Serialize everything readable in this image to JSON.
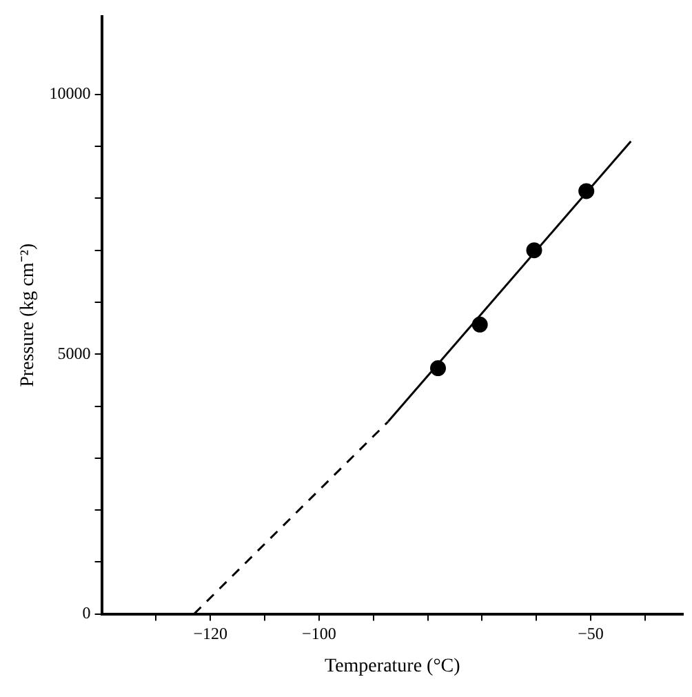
{
  "chart_data": {
    "type": "scatter",
    "xlabel": "Temperature (°C)",
    "ylabel": "Pressure (kg cm⁻²)",
    "xlim": [
      -140,
      -33
    ],
    "ylim": [
      0,
      11500
    ],
    "xticks": [
      {
        "value": -130,
        "label": null
      },
      {
        "value": -120,
        "label": "−120"
      },
      {
        "value": -110,
        "label": null
      },
      {
        "value": -100,
        "label": "−100"
      },
      {
        "value": -90,
        "label": null
      },
      {
        "value": -80,
        "label": null
      },
      {
        "value": -70,
        "label": null
      },
      {
        "value": -60,
        "label": null
      },
      {
        "value": -50,
        "label": "−50"
      },
      {
        "value": -40,
        "label": null
      }
    ],
    "yticks": [
      0,
      {
        "value": 1000,
        "label": null
      },
      {
        "value": 2000,
        "label": null
      },
      {
        "value": 3000,
        "label": null
      },
      {
        "value": 4000,
        "label": null
      },
      5000,
      {
        "value": 6000,
        "label": null
      },
      {
        "value": 7000,
        "label": null
      },
      {
        "value": 8000,
        "label": null
      },
      {
        "value": 9000,
        "label": null
      },
      10000
    ],
    "grid": false,
    "legend": false,
    "series": [
      {
        "type": "scatter",
        "color": "#000000",
        "marker": "circle",
        "x": [
          -78.1,
          -70.4,
          -60.4,
          -50.8
        ],
        "values": [
          4730,
          5570,
          7000,
          8140
        ]
      },
      {
        "type": "line",
        "color": "#000000",
        "line_style": "dashed",
        "marker": "none",
        "x": [
          -123,
          -87.3
        ],
        "values": [
          0,
          3700
        ]
      },
      {
        "type": "line",
        "color": "#000000",
        "line_style": "solid",
        "marker": "none",
        "x": [
          -87.3,
          -42.6
        ],
        "values": [
          3700,
          9100
        ]
      }
    ]
  }
}
